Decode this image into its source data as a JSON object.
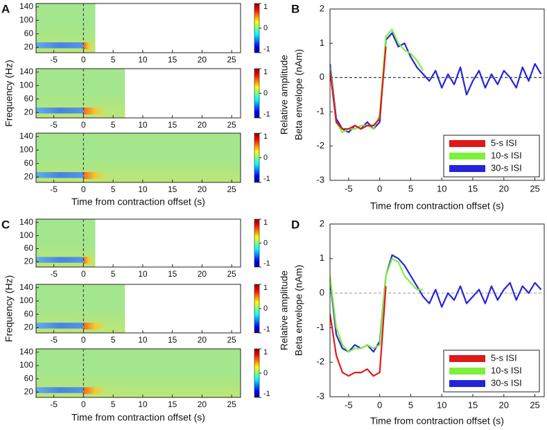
{
  "chart_data": [
    {
      "type": "spectrogram",
      "label": "A",
      "xlabel": "Time from contraction offset (s)",
      "ylabel": "Frequency (Hz)",
      "xlim": [
        -8,
        26.5
      ],
      "xticks": [
        -5,
        0,
        5,
        10,
        15,
        20,
        25
      ],
      "ylim": [
        4,
        150
      ],
      "yticks": [
        20,
        60,
        100,
        140
      ],
      "clim": [
        -1,
        1
      ],
      "cticks": [
        1,
        0,
        -1
      ],
      "reference_line": 0,
      "rows": [
        {
          "x_extent": [
            -8,
            2
          ]
        },
        {
          "x_extent": [
            -8,
            7
          ]
        },
        {
          "x_extent": [
            -8,
            26.5
          ]
        }
      ]
    },
    {
      "type": "line",
      "label": "B",
      "xlabel": "Time from contraction offset (s)",
      "ylabel": [
        "Relative amplitude",
        "Beta envelope (nAm)"
      ],
      "xlim": [
        -8,
        26.5
      ],
      "xticks": [
        -5,
        0,
        5,
        10,
        15,
        20,
        25
      ],
      "ylim": [
        -3,
        2
      ],
      "yticks": [
        -3,
        -2,
        -1,
        0,
        1,
        2
      ],
      "reference_line": 0,
      "reference_color": "#000000",
      "legend": "lower right",
      "series": [
        {
          "name": "5-s ISI",
          "color": "#e01818",
          "x": [
            -8,
            -7,
            -6,
            -5,
            -4,
            -3,
            -2,
            -1,
            0,
            1
          ],
          "values": [
            0.2,
            -1.3,
            -1.5,
            -1.5,
            -1.4,
            -1.5,
            -1.4,
            -1.4,
            -1.2,
            0.9
          ]
        },
        {
          "name": "10-s ISI",
          "color": "#7ef03c",
          "x": [
            -8,
            -7,
            -6,
            -5,
            -4,
            -3,
            -2,
            -1,
            0,
            1,
            2,
            3,
            4,
            5,
            6,
            7
          ],
          "values": [
            0.3,
            -1.3,
            -1.6,
            -1.5,
            -1.5,
            -1.4,
            -1.4,
            -1.5,
            -1.1,
            1.2,
            1.4,
            1.0,
            0.8,
            0.7,
            0.5,
            0.2
          ]
        },
        {
          "name": "30-s ISI",
          "color": "#2424dc",
          "x": [
            -8,
            -7,
            -6,
            -5,
            -4,
            -3,
            -2,
            -1,
            0,
            1,
            2,
            3,
            4,
            5,
            6,
            7,
            8,
            9,
            10,
            11,
            12,
            13,
            14,
            15,
            16,
            17,
            18,
            19,
            20,
            21,
            22,
            23,
            24,
            25,
            26
          ],
          "values": [
            0.4,
            -1.2,
            -1.5,
            -1.6,
            -1.4,
            -1.5,
            -1.3,
            -1.5,
            -1.3,
            1.1,
            1.3,
            0.9,
            1.0,
            0.6,
            0.3,
            0.1,
            -0.1,
            0.2,
            -0.3,
            0.1,
            -0.2,
            0.3,
            -0.5,
            -0.1,
            0.2,
            -0.3,
            0.1,
            -0.2,
            0.2,
            0,
            -0.3,
            0.3,
            -0.1,
            0.4,
            0.1
          ]
        }
      ]
    },
    {
      "type": "spectrogram",
      "label": "C",
      "xlabel": "Time from contraction offset (s)",
      "ylabel": "Frequency (Hz)",
      "xlim": [
        -8,
        26.5
      ],
      "xticks": [
        -5,
        0,
        5,
        10,
        15,
        20,
        25
      ],
      "ylim": [
        4,
        150
      ],
      "yticks": [
        20,
        60,
        100,
        140
      ],
      "clim": [
        -1,
        1
      ],
      "cticks": [
        1,
        0,
        -1
      ],
      "reference_line": 0,
      "rows": [
        {
          "x_extent": [
            -8,
            2
          ]
        },
        {
          "x_extent": [
            -8,
            7
          ]
        },
        {
          "x_extent": [
            -8,
            26.5
          ]
        }
      ]
    },
    {
      "type": "line",
      "label": "D",
      "xlabel": "Time from contraction offset (s)",
      "ylabel": [
        "Relative amplitude",
        "Beta envelope (nAm)"
      ],
      "xlim": [
        -8,
        26.5
      ],
      "xticks": [
        -5,
        0,
        5,
        10,
        15,
        20,
        25
      ],
      "ylim": [
        -3,
        2
      ],
      "yticks": [
        -3,
        -2,
        -1,
        0,
        1,
        2
      ],
      "reference_line": 0,
      "reference_color": "#9a9a9a",
      "legend": "lower right",
      "series": [
        {
          "name": "5-s ISI",
          "color": "#e01818",
          "x": [
            -8,
            -7,
            -6,
            -5,
            -4,
            -3,
            -2,
            -1,
            0,
            1
          ],
          "values": [
            -0.6,
            -1.8,
            -2.3,
            -2.4,
            -2.3,
            -2.3,
            -2.2,
            -2.4,
            -2.3,
            0.2
          ]
        },
        {
          "name": "10-s ISI",
          "color": "#7ef03c",
          "x": [
            -8,
            -7,
            -6,
            -5,
            -4,
            -3,
            -2,
            -1,
            0,
            1,
            2,
            3,
            4,
            5,
            6,
            7
          ],
          "values": [
            0.5,
            -1.0,
            -1.5,
            -1.7,
            -1.6,
            -1.6,
            -1.5,
            -1.6,
            -1.5,
            0.5,
            1.0,
            0.9,
            0.5,
            0.3,
            0.1,
            0.1
          ]
        },
        {
          "name": "30-s ISI",
          "color": "#2424dc",
          "x": [
            -8,
            -7,
            -6,
            -5,
            -4,
            -3,
            -2,
            -1,
            0,
            1,
            2,
            3,
            4,
            5,
            6,
            7,
            8,
            9,
            10,
            11,
            12,
            13,
            14,
            15,
            16,
            17,
            18,
            19,
            20,
            21,
            22,
            23,
            24,
            25,
            26
          ],
          "values": [
            0.4,
            -1.2,
            -1.6,
            -1.7,
            -1.5,
            -1.6,
            -1.5,
            -1.7,
            -1.4,
            0.5,
            1.1,
            1.0,
            0.8,
            0.5,
            0.2,
            -0.1,
            -0.3,
            0.1,
            -0.4,
            0,
            -0.2,
            0.2,
            -0.3,
            -0.1,
            0.1,
            -0.3,
            0.2,
            -0.2,
            0.1,
            0.3,
            -0.2,
            0.2,
            0,
            0.3,
            0.1
          ]
        }
      ]
    }
  ]
}
